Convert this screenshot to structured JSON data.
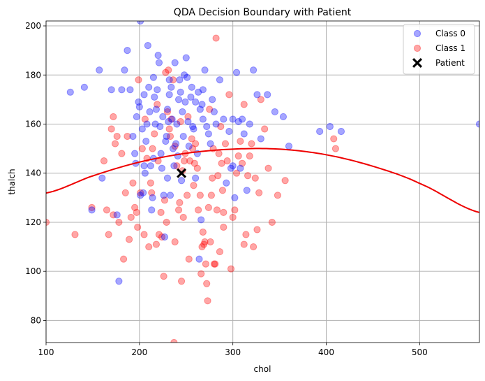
{
  "chart_data": {
    "type": "scatter",
    "title": "QDA Decision Boundary with Patient",
    "xlabel": "chol",
    "ylabel": "thalch",
    "xlim": [
      100,
      564
    ],
    "ylim": [
      71,
      202
    ],
    "xticks": [
      100,
      200,
      300,
      400,
      500
    ],
    "yticks": [
      80,
      100,
      120,
      140,
      160,
      180,
      200
    ],
    "grid": true,
    "legend_position": "top-right",
    "colors": {
      "class0": "#0000ff",
      "class1": "#ff0000",
      "boundary": "#ee0000",
      "patient": "#000000"
    },
    "series": [
      {
        "name": "Class 0",
        "points": [
          [
            126,
            173
          ],
          [
            141,
            175
          ],
          [
            149,
            125
          ],
          [
            157,
            182
          ],
          [
            160,
            138
          ],
          [
            170,
            174
          ],
          [
            176,
            123
          ],
          [
            178,
            96
          ],
          [
            181,
            174
          ],
          [
            184,
            182
          ],
          [
            187,
            190
          ],
          [
            190,
            174
          ],
          [
            193,
            155
          ],
          [
            195,
            148
          ],
          [
            196,
            144
          ],
          [
            197,
            163
          ],
          [
            199,
            169
          ],
          [
            200,
            167
          ],
          [
            201,
            131
          ],
          [
            203,
            158
          ],
          [
            204,
            132
          ],
          [
            205,
            143
          ],
          [
            206,
            140
          ],
          [
            207,
            153
          ],
          [
            208,
            160
          ],
          [
            209,
            192
          ],
          [
            210,
            175
          ],
          [
            211,
            165
          ],
          [
            212,
            143
          ],
          [
            213,
            125
          ],
          [
            214,
            130
          ],
          [
            215,
            179
          ],
          [
            216,
            171
          ],
          [
            217,
            160
          ],
          [
            218,
            166
          ],
          [
            219,
            174
          ],
          [
            220,
            188
          ],
          [
            221,
            185
          ],
          [
            222,
            159
          ],
          [
            223,
            148
          ],
          [
            224,
            142
          ],
          [
            225,
            163
          ],
          [
            226,
            131
          ],
          [
            227,
            114
          ],
          [
            228,
            153
          ],
          [
            229,
            155
          ],
          [
            230,
            166
          ],
          [
            231,
            161
          ],
          [
            232,
            178
          ],
          [
            233,
            131
          ],
          [
            234,
            175
          ],
          [
            235,
            162
          ],
          [
            236,
            150
          ],
          [
            237,
            143
          ],
          [
            238,
            185
          ],
          [
            239,
            152
          ],
          [
            240,
            160
          ],
          [
            241,
            147
          ],
          [
            242,
            170
          ],
          [
            243,
            178
          ],
          [
            244,
            173
          ],
          [
            245,
            137
          ],
          [
            246,
            165
          ],
          [
            247,
            155
          ],
          [
            248,
            180
          ],
          [
            249,
            169
          ],
          [
            250,
            187
          ],
          [
            251,
            179
          ],
          [
            252,
            161
          ],
          [
            253,
            151
          ],
          [
            255,
            171
          ],
          [
            256,
            175
          ],
          [
            257,
            159
          ],
          [
            258,
            158
          ],
          [
            260,
            169
          ],
          [
            262,
            148
          ],
          [
            263,
            173
          ],
          [
            264,
            105
          ],
          [
            265,
            166
          ],
          [
            266,
            121
          ],
          [
            267,
            168
          ],
          [
            268,
            162
          ],
          [
            270,
            182
          ],
          [
            272,
            159
          ],
          [
            274,
            156
          ],
          [
            276,
            152
          ],
          [
            278,
            170
          ],
          [
            280,
            165
          ],
          [
            282,
            160
          ],
          [
            286,
            178
          ],
          [
            290,
            162
          ],
          [
            293,
            136
          ],
          [
            296,
            157
          ],
          [
            298,
            142
          ],
          [
            300,
            162
          ],
          [
            302,
            130
          ],
          [
            304,
            181
          ],
          [
            306,
            161
          ],
          [
            308,
            142
          ],
          [
            310,
            162
          ],
          [
            312,
            156
          ],
          [
            315,
            133
          ],
          [
            318,
            160
          ],
          [
            322,
            182
          ],
          [
            326,
            172
          ],
          [
            330,
            154
          ],
          [
            337,
            172
          ],
          [
            345,
            165
          ],
          [
            354,
            163
          ],
          [
            360,
            151
          ],
          [
            393,
            157
          ],
          [
            404,
            159
          ],
          [
            416,
            157
          ],
          [
            564,
            160
          ],
          [
            201,
            202
          ],
          [
            205,
            172
          ],
          [
            215,
            146
          ],
          [
            230,
            138
          ],
          [
            260,
            138
          ],
          [
            300,
            143
          ],
          [
            232,
            172
          ],
          [
            268,
            174
          ]
        ]
      },
      {
        "name": "Class 1",
        "points": [
          [
            100,
            120
          ],
          [
            131,
            115
          ],
          [
            149,
            126
          ],
          [
            162,
            145
          ],
          [
            165,
            125
          ],
          [
            167,
            115
          ],
          [
            170,
            158
          ],
          [
            172,
            123
          ],
          [
            174,
            152
          ],
          [
            176,
            155
          ],
          [
            178,
            120
          ],
          [
            181,
            148
          ],
          [
            183,
            105
          ],
          [
            185,
            132
          ],
          [
            187,
            155
          ],
          [
            189,
            113
          ],
          [
            191,
            122
          ],
          [
            193,
            136
          ],
          [
            195,
            126
          ],
          [
            197,
            124
          ],
          [
            199,
            178
          ],
          [
            201,
            132
          ],
          [
            203,
            150
          ],
          [
            205,
            115
          ],
          [
            206,
            162
          ],
          [
            208,
            146
          ],
          [
            210,
            110
          ],
          [
            212,
            136
          ],
          [
            213,
            132
          ],
          [
            214,
            150
          ],
          [
            216,
            156
          ],
          [
            218,
            111
          ],
          [
            219,
            168
          ],
          [
            221,
            115
          ],
          [
            223,
            124
          ],
          [
            224,
            114
          ],
          [
            226,
            98
          ],
          [
            227,
            129
          ],
          [
            228,
            181
          ],
          [
            229,
            120
          ],
          [
            230,
            165
          ],
          [
            231,
            182
          ],
          [
            232,
            158
          ],
          [
            233,
            155
          ],
          [
            234,
            162
          ],
          [
            236,
            178
          ],
          [
            237,
            71
          ],
          [
            238,
            151
          ],
          [
            240,
            143
          ],
          [
            242,
            125
          ],
          [
            243,
            128
          ],
          [
            245,
            96
          ],
          [
            246,
            141
          ],
          [
            247,
            122
          ],
          [
            248,
            145
          ],
          [
            249,
            148
          ],
          [
            251,
            131
          ],
          [
            252,
            163
          ],
          [
            253,
            105
          ],
          [
            254,
            145
          ],
          [
            256,
            154
          ],
          [
            257,
            150
          ],
          [
            259,
            144
          ],
          [
            260,
            152
          ],
          [
            262,
            142
          ],
          [
            263,
            125
          ],
          [
            265,
            131
          ],
          [
            266,
            99
          ],
          [
            267,
            110
          ],
          [
            268,
            116
          ],
          [
            269,
            111
          ],
          [
            270,
            112
          ],
          [
            271,
            103
          ],
          [
            272,
            95
          ],
          [
            273,
            88
          ],
          [
            274,
            126
          ],
          [
            275,
            166
          ],
          [
            276,
            112
          ],
          [
            277,
            131
          ],
          [
            278,
            138
          ],
          [
            279,
            150
          ],
          [
            280,
            103
          ],
          [
            281,
            103
          ],
          [
            282,
            195
          ],
          [
            283,
            125
          ],
          [
            284,
            139
          ],
          [
            285,
            148
          ],
          [
            286,
            108
          ],
          [
            287,
            159
          ],
          [
            288,
            144
          ],
          [
            289,
            133
          ],
          [
            290,
            124
          ],
          [
            292,
            152
          ],
          [
            294,
            145
          ],
          [
            296,
            172
          ],
          [
            298,
            101
          ],
          [
            300,
            122
          ],
          [
            302,
            125
          ],
          [
            304,
            140
          ],
          [
            306,
            147
          ],
          [
            308,
            153
          ],
          [
            310,
            144
          ],
          [
            312,
            111
          ],
          [
            314,
            115
          ],
          [
            316,
            139
          ],
          [
            318,
            147
          ],
          [
            320,
            152
          ],
          [
            322,
            110
          ],
          [
            324,
            138
          ],
          [
            326,
            117
          ],
          [
            328,
            132
          ],
          [
            330,
            170
          ],
          [
            334,
            158
          ],
          [
            338,
            142
          ],
          [
            342,
            120
          ],
          [
            348,
            131
          ],
          [
            356,
            137
          ],
          [
            408,
            154
          ],
          [
            410,
            150
          ],
          [
            220,
            145
          ],
          [
            244,
            161
          ],
          [
            258,
            135
          ],
          [
            290,
            118
          ],
          [
            172,
            163
          ],
          [
            198,
            118
          ],
          [
            238,
            112
          ],
          [
            312,
            168
          ]
        ]
      },
      {
        "name": "Patient",
        "points": [
          [
            245,
            140
          ]
        ]
      }
    ],
    "decision_boundary": {
      "type": "quadratic",
      "points": [
        [
          100,
          131.9
        ],
        [
          150,
          138.9
        ],
        [
          200,
          144.5
        ],
        [
          250,
          148.1
        ],
        [
          300,
          149.8
        ],
        [
          350,
          149.8
        ],
        [
          400,
          147.5
        ],
        [
          450,
          142.8
        ],
        [
          500,
          135.8
        ],
        [
          564,
          124.0
        ]
      ]
    }
  }
}
